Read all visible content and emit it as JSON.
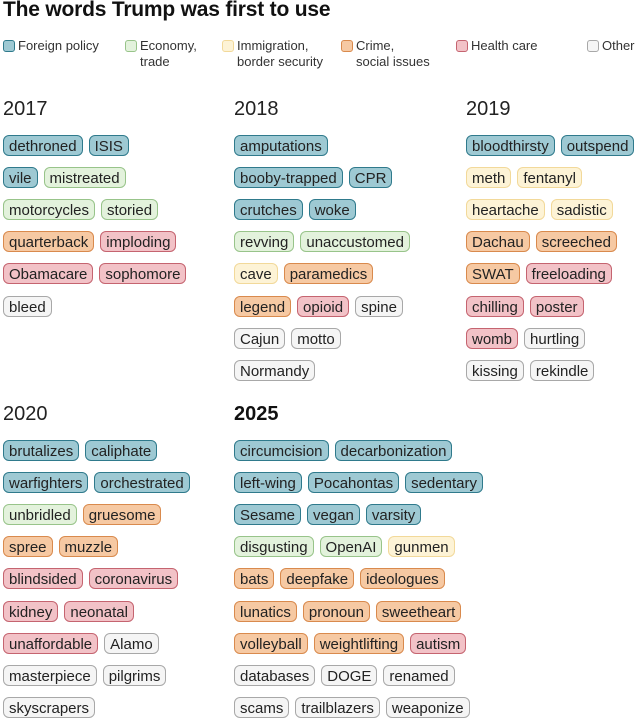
{
  "chart_data": {
    "type": "table",
    "title": "The words Trump was first to use",
    "categories": [
      {
        "key": "foreign",
        "label": "Foreign policy",
        "lines": [
          "Foreign policy"
        ],
        "fill": "#9ec9d3",
        "stroke": "#2f7a8c"
      },
      {
        "key": "economy",
        "label": "Economy, trade",
        "lines": [
          "Economy,",
          "trade"
        ],
        "fill": "#e3f2dc",
        "stroke": "#98c48a"
      },
      {
        "key": "immigration",
        "label": "Immigration, border security",
        "lines": [
          "Immigration,",
          "border security"
        ],
        "fill": "#fdf3d6",
        "stroke": "#f2d99a"
      },
      {
        "key": "crime",
        "label": "Crime, social issues",
        "lines": [
          "Crime,",
          "social issues"
        ],
        "fill": "#f6c9a3",
        "stroke": "#d98a4d"
      },
      {
        "key": "health",
        "label": "Health care",
        "lines": [
          "Health care"
        ],
        "fill": "#f2c2c7",
        "stroke": "#c56470"
      },
      {
        "key": "other",
        "label": "Other",
        "lines": [
          "Other"
        ],
        "fill": "#f5f5f5",
        "stroke": "#a8a8a8"
      }
    ],
    "years": [
      {
        "year": "2017",
        "bold": false,
        "rows": [
          [
            [
              "dethroned",
              "foreign"
            ],
            [
              "ISIS",
              "foreign"
            ]
          ],
          [
            [
              "vile",
              "foreign"
            ],
            [
              "mistreated",
              "economy"
            ]
          ],
          [
            [
              "motorcycles",
              "economy"
            ],
            [
              "storied",
              "economy"
            ]
          ],
          [
            [
              "quarterback",
              "crime"
            ],
            [
              "imploding",
              "health"
            ]
          ],
          [
            [
              "Obamacare",
              "health"
            ],
            [
              "sophomore",
              "health"
            ]
          ],
          [
            [
              "bleed",
              "other"
            ]
          ]
        ]
      },
      {
        "year": "2018",
        "bold": false,
        "rows": [
          [
            [
              "amputations",
              "foreign"
            ]
          ],
          [
            [
              "booby-trapped",
              "foreign"
            ],
            [
              "CPR",
              "foreign"
            ]
          ],
          [
            [
              "crutches",
              "foreign"
            ],
            [
              "woke",
              "foreign"
            ]
          ],
          [
            [
              "revving",
              "economy"
            ],
            [
              "unaccustomed",
              "economy"
            ]
          ],
          [
            [
              "cave",
              "immigration"
            ],
            [
              "paramedics",
              "crime"
            ]
          ],
          [
            [
              "legend",
              "crime"
            ],
            [
              "opioid",
              "health"
            ],
            [
              "spine",
              "other"
            ]
          ],
          [
            [
              "Cajun",
              "other"
            ],
            [
              "motto",
              "other"
            ]
          ],
          [
            [
              "Normandy",
              "other"
            ]
          ]
        ]
      },
      {
        "year": "2019",
        "bold": false,
        "rows": [
          [
            [
              "bloodthirsty",
              "foreign"
            ],
            [
              "outspend",
              "foreign"
            ]
          ],
          [
            [
              "meth",
              "immigration"
            ],
            [
              "fentanyl",
              "immigration"
            ]
          ],
          [
            [
              "heartache",
              "immigration"
            ],
            [
              "sadistic",
              "immigration"
            ]
          ],
          [
            [
              "Dachau",
              "crime"
            ],
            [
              "screeched",
              "crime"
            ]
          ],
          [
            [
              "SWAT",
              "crime"
            ],
            [
              "freeloading",
              "health"
            ]
          ],
          [
            [
              "chilling",
              "health"
            ],
            [
              "poster",
              "health"
            ]
          ],
          [
            [
              "womb",
              "health"
            ],
            [
              "hurtling",
              "other"
            ]
          ],
          [
            [
              "kissing",
              "other"
            ],
            [
              "rekindle",
              "other"
            ]
          ]
        ]
      },
      {
        "year": "2020",
        "bold": false,
        "rows": [
          [
            [
              "brutalizes",
              "foreign"
            ],
            [
              "caliphate",
              "foreign"
            ]
          ],
          [
            [
              "warfighters",
              "foreign"
            ],
            [
              "orchestrated",
              "foreign"
            ]
          ],
          [
            [
              "unbridled",
              "economy"
            ],
            [
              "gruesome",
              "crime"
            ]
          ],
          [
            [
              "spree",
              "crime"
            ],
            [
              "muzzle",
              "crime"
            ]
          ],
          [
            [
              "blindsided",
              "health"
            ],
            [
              "coronavirus",
              "health"
            ]
          ],
          [
            [
              "kidney",
              "health"
            ],
            [
              "neonatal",
              "health"
            ]
          ],
          [
            [
              "unaffordable",
              "health"
            ],
            [
              "Alamo",
              "other"
            ]
          ],
          [
            [
              "masterpiece",
              "other"
            ],
            [
              "pilgrims",
              "other"
            ]
          ],
          [
            [
              "skyscrapers",
              "other"
            ]
          ]
        ]
      },
      {
        "year": "2025",
        "bold": true,
        "rows": [
          [
            [
              "circumcision",
              "foreign"
            ],
            [
              "decarbonization",
              "foreign"
            ]
          ],
          [
            [
              "left-wing",
              "foreign"
            ],
            [
              "Pocahontas",
              "foreign"
            ],
            [
              "sedentary",
              "foreign"
            ]
          ],
          [
            [
              "Sesame",
              "foreign"
            ],
            [
              "vegan",
              "foreign"
            ],
            [
              "varsity",
              "foreign"
            ]
          ],
          [
            [
              "disgusting",
              "economy"
            ],
            [
              "OpenAI",
              "economy"
            ],
            [
              "gunmen",
              "immigration"
            ]
          ],
          [
            [
              "bats",
              "crime"
            ],
            [
              "deepfake",
              "crime"
            ],
            [
              "ideologues",
              "crime"
            ]
          ],
          [
            [
              "lunatics",
              "crime"
            ],
            [
              "pronoun",
              "crime"
            ],
            [
              "sweetheart",
              "crime"
            ]
          ],
          [
            [
              "volleyball",
              "crime"
            ],
            [
              "weightlifting",
              "crime"
            ],
            [
              "autism",
              "health"
            ]
          ],
          [
            [
              "databases",
              "other"
            ],
            [
              "DOGE",
              "other"
            ],
            [
              "renamed",
              "other"
            ]
          ],
          [
            [
              "scams",
              "other"
            ],
            [
              "trailblazers",
              "other"
            ],
            [
              "weaponize",
              "other"
            ]
          ]
        ]
      }
    ]
  }
}
